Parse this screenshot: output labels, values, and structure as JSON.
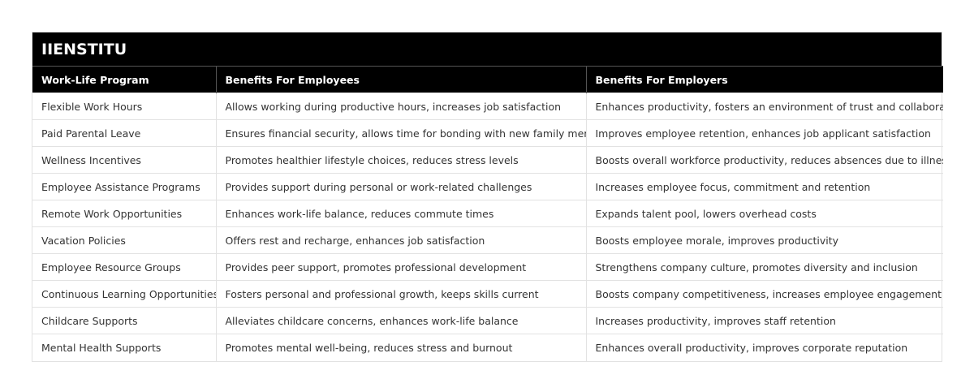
{
  "header": {
    "title": "IIENSTITU"
  },
  "table": {
    "columns": [
      "Work-Life Program",
      "Benefits For Employees",
      "Benefits For Employers"
    ],
    "rows": [
      [
        "Flexible Work Hours",
        "Allows working during productive hours, increases job satisfaction",
        "Enhances productivity, fosters an environment of trust and collaboration"
      ],
      [
        "Paid Parental Leave",
        "Ensures financial security, allows time for bonding with new family member",
        "Improves employee retention, enhances job applicant satisfaction"
      ],
      [
        "Wellness Incentives",
        "Promotes healthier lifestyle choices, reduces stress levels",
        "Boosts overall workforce productivity, reduces absences due to illness"
      ],
      [
        "Employee Assistance Programs",
        "Provides support during personal or work-related challenges",
        "Increases employee focus, commitment and retention"
      ],
      [
        "Remote Work Opportunities",
        "Enhances work-life balance, reduces commute times",
        "Expands talent pool, lowers overhead costs"
      ],
      [
        "Vacation Policies",
        "Offers rest and recharge, enhances job satisfaction",
        "Boosts employee morale, improves productivity"
      ],
      [
        "Employee Resource Groups",
        "Provides peer support, promotes professional development",
        "Strengthens company culture, promotes diversity and inclusion"
      ],
      [
        "Continuous Learning Opportunities",
        "Fosters personal and professional growth, keeps skills current",
        "Boosts company competitiveness, increases employee engagement"
      ],
      [
        "Childcare Supports",
        "Alleviates childcare concerns, enhances work-life balance",
        "Increases productivity, improves staff retention"
      ],
      [
        "Mental Health Supports",
        "Promotes mental well-being, reduces stress and burnout",
        "Enhances overall productivity, improves corporate reputation"
      ]
    ]
  }
}
